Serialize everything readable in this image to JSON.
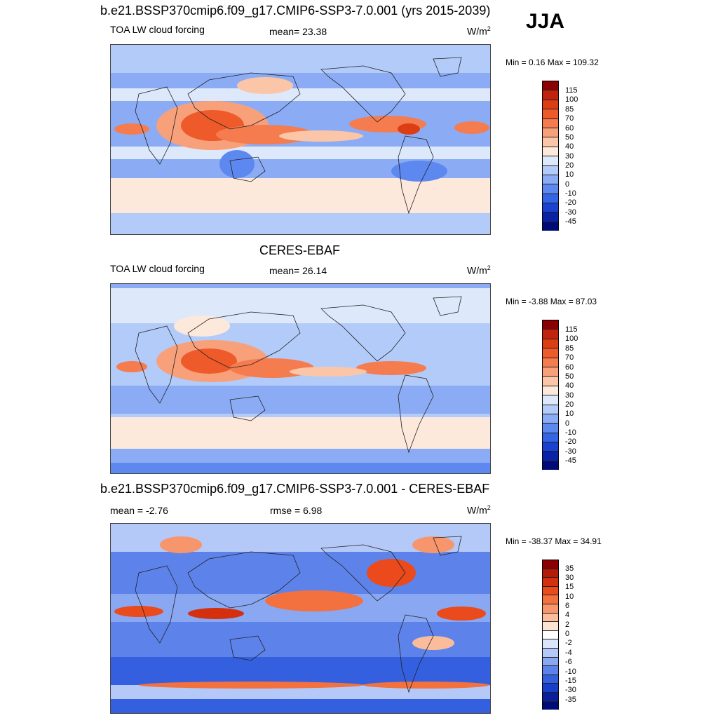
{
  "season": "JJA",
  "panels": [
    {
      "header": "b.e21.BSSP370cmip6.f09_g17.CMIP6-SSP3-7.0.001 (yrs 2015-2039)",
      "left": "TOA LW cloud forcing",
      "center": "mean=  23.38",
      "units_base": "W/m",
      "units_sup": "2",
      "minmax": "Min =   0.16 Max = 109.32",
      "colorbar_labels": [
        "115",
        "100",
        "85",
        "70",
        "60",
        "50",
        "40",
        "30",
        "20",
        "10",
        "0",
        "-10",
        "-20",
        "-30",
        "-45"
      ]
    },
    {
      "header": "CERES-EBAF",
      "left": "TOA LW cloud forcing",
      "center": "mean=  26.14",
      "units_base": "W/m",
      "units_sup": "2",
      "minmax": "Min =  -3.88 Max =  87.03",
      "colorbar_labels": [
        "115",
        "100",
        "85",
        "70",
        "60",
        "50",
        "40",
        "30",
        "20",
        "10",
        "0",
        "-10",
        "-20",
        "-30",
        "-45"
      ]
    },
    {
      "header": "b.e21.BSSP370cmip6.f09_g17.CMIP6-SSP3-7.0.001 - CERES-EBAF",
      "left": "mean =  -2.76",
      "center": "rmse =   6.98",
      "units_base": "W/m",
      "units_sup": "2",
      "minmax": "Min = -38.37 Max =  34.91",
      "colorbar_labels": [
        "35",
        "30",
        "15",
        "10",
        "6",
        "4",
        "2",
        "0",
        "-2",
        "-4",
        "-6",
        "-10",
        "-15",
        "-30",
        "-35"
      ]
    }
  ],
  "colors": {
    "abs_scale": [
      "#8b0000",
      "#c1230e",
      "#dd3d12",
      "#ee5a2a",
      "#f47c4f",
      "#f7a07a",
      "#fbc6a8",
      "#fde9dc",
      "#dde8fb",
      "#b3cbf8",
      "#8bacf5",
      "#5d88ef",
      "#3465e6",
      "#1842cf",
      "#0a22a5",
      "#000c75"
    ],
    "diff_scale": [
      "#8b0000",
      "#b51c08",
      "#d4300e",
      "#ea4a1c",
      "#f3703f",
      "#f7966c",
      "#fbbc9c",
      "#fde3d3",
      "#ffffff",
      "#dce6fb",
      "#b4c9f7",
      "#8aa8f2",
      "#5d83ea",
      "#3460df",
      "#173fc9",
      "#0a1ea0",
      "#000c75"
    ]
  }
}
